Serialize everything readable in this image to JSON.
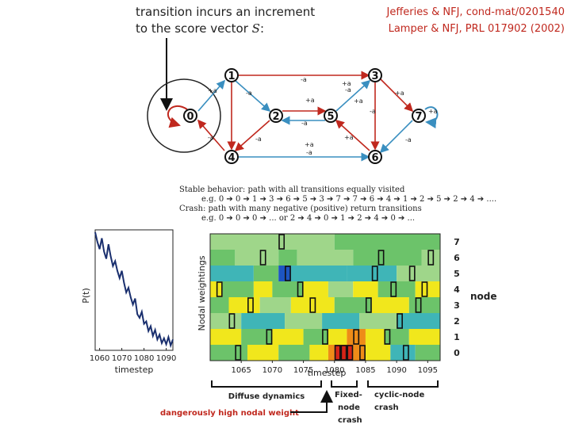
{
  "caption": {
    "line1": "transition incurs an increment",
    "line2_prefix": "to the score vector",
    "symbol": "S",
    "line2_suffix": ":"
  },
  "references": [
    "Jefferies & NFJ, cond-mat/0201540",
    "Lamper & NFJ, PRL 017902 (2002)"
  ],
  "graph": {
    "nodes": [
      {
        "id": "0"
      },
      {
        "id": "1"
      },
      {
        "id": "2"
      },
      {
        "id": "3"
      },
      {
        "id": "4"
      },
      {
        "id": "5"
      },
      {
        "id": "6"
      },
      {
        "id": "7"
      }
    ],
    "edge_labels": [
      "-a",
      "+a",
      "-a",
      "+a",
      "-a",
      "+a",
      "-a",
      "+a",
      "-a",
      "+a",
      "-a",
      "+a",
      "-a",
      "+a",
      "-a",
      "+a",
      "-a",
      "+a"
    ]
  },
  "description": {
    "stable": "Stable behavior: path with all transitions equally visited",
    "stable_example": "e.g.   0 ➔ 0 ➔ 1 ➔ 3 ➔ 6 ➔ 5 ➔ 3 ➔ 7 ➔ 7 ➔ 6 ➔ 4 ➔ 1 ➔ 2 ➔ 5 ➔ 2 ➔ 4 ➔ ....",
    "crash": "Crash: path with many negative (positive) return transitions",
    "crash_example": "e.g.   0 ➔ 0 ➔ 0 ➔ ... or 2 ➔ 4 ➔ 0 ➔ 1 ➔ 2 ➔ 4 ➔ 0 ➔ ..."
  },
  "chart_data": [
    {
      "type": "line",
      "xlabel": "timestep",
      "ylabel": "P(t)",
      "xticks": [
        1060,
        1070,
        1080,
        1090
      ],
      "xlim": [
        1058,
        1093
      ],
      "ylim": [
        0,
        1
      ],
      "x": [
        1058,
        1059,
        1060,
        1061,
        1062,
        1063,
        1064,
        1065,
        1066,
        1067,
        1068,
        1069,
        1070,
        1071,
        1072,
        1073,
        1074,
        1075,
        1076,
        1077,
        1078,
        1079,
        1080,
        1081,
        1082,
        1083,
        1084,
        1085,
        1086,
        1087,
        1088,
        1089,
        1090,
        1091,
        1092,
        1093
      ],
      "y": [
        0.98,
        0.9,
        0.84,
        0.93,
        0.82,
        0.76,
        0.88,
        0.78,
        0.7,
        0.74,
        0.66,
        0.6,
        0.66,
        0.56,
        0.48,
        0.52,
        0.44,
        0.38,
        0.43,
        0.3,
        0.27,
        0.32,
        0.22,
        0.24,
        0.16,
        0.2,
        0.12,
        0.17,
        0.09,
        0.13,
        0.06,
        0.1,
        0.05,
        0.11,
        0.04,
        0.09
      ]
    },
    {
      "type": "heatmap",
      "xlabel": "timestep",
      "ylabel": "Nodal weightings",
      "xticks": [
        1065,
        1070,
        1075,
        1080,
        1085,
        1090,
        1095
      ],
      "xlim": [
        1060,
        1097
      ],
      "y_categories": [
        "0",
        "1",
        "2",
        "3",
        "4",
        "5",
        "6",
        "7"
      ],
      "right_label": "node",
      "palette": {
        "teal": "#3fb5b7",
        "lgreen": "#9fd68a",
        "green": "#6cc36a",
        "yellow": "#f1e71c",
        "orange": "#ee8c18",
        "red": "#d62417",
        "blue": "#1d55c2"
      },
      "rows": [
        {
          "node": "7",
          "segments": [
            [
              1060,
              1072,
              "lgreen"
            ],
            [
              1072,
              1080,
              "lgreen"
            ],
            [
              1080,
              1097,
              "green"
            ]
          ]
        },
        {
          "node": "6",
          "segments": [
            [
              1060,
              1064,
              "green"
            ],
            [
              1064,
              1071,
              "lgreen"
            ],
            [
              1071,
              1074,
              "green"
            ],
            [
              1074,
              1083,
              "lgreen"
            ],
            [
              1083,
              1094,
              "green"
            ],
            [
              1094,
              1097,
              "lgreen"
            ]
          ]
        },
        {
          "node": "5",
          "segments": [
            [
              1060,
              1067,
              "teal"
            ],
            [
              1067,
              1071,
              "green"
            ],
            [
              1071,
              1073,
              "blue"
            ],
            [
              1073,
              1082,
              "teal"
            ],
            [
              1082,
              1090,
              "teal"
            ],
            [
              1090,
              1097,
              "lgreen"
            ]
          ]
        },
        {
          "node": "4",
          "segments": [
            [
              1060,
              1062,
              "yellow"
            ],
            [
              1062,
              1067,
              "green"
            ],
            [
              1067,
              1070,
              "yellow"
            ],
            [
              1070,
              1075,
              "green"
            ],
            [
              1075,
              1079,
              "yellow"
            ],
            [
              1079,
              1083,
              "lgreen"
            ],
            [
              1083,
              1087,
              "yellow"
            ],
            [
              1087,
              1093,
              "green"
            ],
            [
              1093,
              1097,
              "yellow"
            ]
          ]
        },
        {
          "node": "3",
          "segments": [
            [
              1060,
              1063,
              "green"
            ],
            [
              1063,
              1068,
              "yellow"
            ],
            [
              1068,
              1073,
              "lgreen"
            ],
            [
              1073,
              1080,
              "yellow"
            ],
            [
              1080,
              1086,
              "green"
            ],
            [
              1086,
              1092,
              "yellow"
            ],
            [
              1092,
              1097,
              "green"
            ]
          ]
        },
        {
          "node": "2",
          "segments": [
            [
              1060,
              1065,
              "lgreen"
            ],
            [
              1065,
              1072,
              "teal"
            ],
            [
              1072,
              1078,
              "lgreen"
            ],
            [
              1078,
              1084,
              "teal"
            ],
            [
              1084,
              1090,
              "lgreen"
            ],
            [
              1090,
              1097,
              "teal"
            ]
          ]
        },
        {
          "node": "1",
          "segments": [
            [
              1060,
              1065,
              "yellow"
            ],
            [
              1065,
              1070,
              "green"
            ],
            [
              1070,
              1075,
              "yellow"
            ],
            [
              1075,
              1079,
              "green"
            ],
            [
              1079,
              1082,
              "yellow"
            ],
            [
              1082,
              1085,
              "orange"
            ],
            [
              1085,
              1088,
              "yellow"
            ],
            [
              1088,
              1092,
              "green"
            ],
            [
              1092,
              1097,
              "yellow"
            ]
          ]
        },
        {
          "node": "0",
          "segments": [
            [
              1060,
              1066,
              "green"
            ],
            [
              1066,
              1071,
              "yellow"
            ],
            [
              1071,
              1076,
              "green"
            ],
            [
              1076,
              1079,
              "yellow"
            ],
            [
              1079,
              1080,
              "orange"
            ],
            [
              1080,
              1083,
              "red"
            ],
            [
              1083,
              1085,
              "orange"
            ],
            [
              1085,
              1089,
              "yellow"
            ],
            [
              1089,
              1093,
              "teal"
            ],
            [
              1093,
              1097,
              "green"
            ]
          ]
        }
      ],
      "boxes": [
        [
          1061,
          "4"
        ],
        [
          1063,
          "2"
        ],
        [
          1064,
          "0"
        ],
        [
          1066,
          "3"
        ],
        [
          1068,
          "6"
        ],
        [
          1069,
          "1"
        ],
        [
          1071,
          "7"
        ],
        [
          1072,
          "5"
        ],
        [
          1074,
          "4"
        ],
        [
          1076,
          "3"
        ],
        [
          1078,
          "1"
        ],
        [
          1080,
          "0"
        ],
        [
          1081,
          "0"
        ],
        [
          1082,
          "0"
        ],
        [
          1083,
          "1"
        ],
        [
          1084,
          "0"
        ],
        [
          1085,
          "3"
        ],
        [
          1086,
          "5"
        ],
        [
          1087,
          "6"
        ],
        [
          1088,
          "1"
        ],
        [
          1089,
          "4"
        ],
        [
          1090,
          "2"
        ],
        [
          1091,
          "0"
        ],
        [
          1092,
          "5"
        ],
        [
          1093,
          "3"
        ],
        [
          1094,
          "4"
        ],
        [
          1095,
          "6"
        ]
      ]
    }
  ],
  "annotations": {
    "diffuse": "Diffuse dynamics",
    "fixed": "Fixed-node crash",
    "fixed_lines": [
      "Fixed-",
      "node",
      "crash"
    ],
    "cyclic_lines": [
      "cyclic-node",
      "crash"
    ],
    "danger": "dangerously high nodal weight"
  }
}
